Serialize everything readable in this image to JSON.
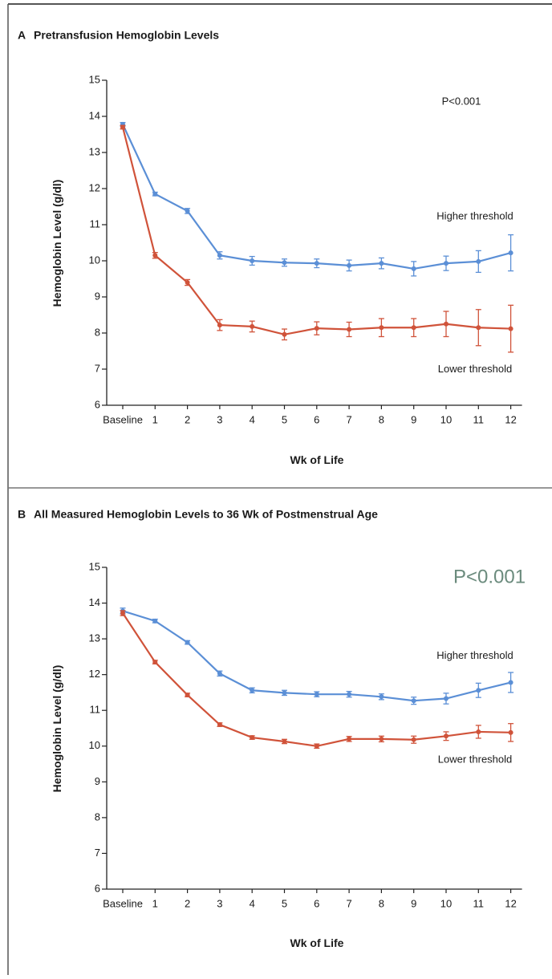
{
  "chart_data": [
    {
      "type": "line",
      "panel": "A",
      "title": "Pretransfusion Hemoglobin Levels",
      "annotation": "P<0.001",
      "ylabel": "Hemoglobin Level (g/dl)",
      "xlabel": "Wk of Life",
      "categories": [
        "Baseline",
        "1",
        "2",
        "3",
        "4",
        "5",
        "6",
        "7",
        "8",
        "9",
        "10",
        "11",
        "12"
      ],
      "ylim": [
        6,
        15
      ],
      "yticks": [
        6,
        7,
        8,
        9,
        10,
        11,
        12,
        13,
        14,
        15
      ],
      "series": [
        {
          "name": "Higher threshold",
          "color": "#5b8fd6",
          "values": [
            13.78,
            11.85,
            11.38,
            10.15,
            10.0,
            9.95,
            9.93,
            9.87,
            9.93,
            9.78,
            9.93,
            9.98,
            10.22
          ],
          "errors": [
            0.05,
            0.05,
            0.07,
            0.1,
            0.12,
            0.1,
            0.12,
            0.15,
            0.15,
            0.2,
            0.2,
            0.3,
            0.5
          ]
        },
        {
          "name": "Lower threshold",
          "color": "#d0533a",
          "values": [
            13.7,
            10.15,
            9.4,
            8.22,
            8.18,
            7.96,
            8.13,
            8.1,
            8.15,
            8.15,
            8.25,
            8.15,
            8.12
          ],
          "errors": [
            0.05,
            0.08,
            0.08,
            0.15,
            0.15,
            0.15,
            0.18,
            0.2,
            0.25,
            0.25,
            0.35,
            0.5,
            0.65
          ]
        }
      ]
    },
    {
      "type": "line",
      "panel": "B",
      "title": "All Measured Hemoglobin Levels to 36 Wk of Postmenstrual Age",
      "annotation": "P<0.001",
      "ylabel": "Hemoglobin Level (g/dl)",
      "xlabel": "Wk of Life",
      "categories": [
        "Baseline",
        "1",
        "2",
        "3",
        "4",
        "5",
        "6",
        "7",
        "8",
        "9",
        "10",
        "11",
        "12"
      ],
      "ylim": [
        6,
        15
      ],
      "yticks": [
        6,
        7,
        8,
        9,
        10,
        11,
        12,
        13,
        14,
        15
      ],
      "series": [
        {
          "name": "Higher threshold",
          "color": "#5b8fd6",
          "values": [
            13.78,
            13.5,
            12.9,
            12.03,
            11.56,
            11.49,
            11.45,
            11.45,
            11.38,
            11.27,
            11.33,
            11.56,
            11.78
          ],
          "errors": [
            0.08,
            0.05,
            0.05,
            0.07,
            0.07,
            0.07,
            0.07,
            0.08,
            0.08,
            0.1,
            0.15,
            0.2,
            0.28
          ]
        },
        {
          "name": "Lower threshold",
          "color": "#d0533a",
          "values": [
            13.72,
            12.35,
            11.43,
            10.6,
            10.24,
            10.13,
            10.0,
            10.2,
            10.2,
            10.18,
            10.28,
            10.4,
            10.38
          ],
          "errors": [
            0.07,
            0.05,
            0.05,
            0.05,
            0.05,
            0.06,
            0.06,
            0.07,
            0.08,
            0.1,
            0.12,
            0.18,
            0.25
          ]
        }
      ]
    }
  ]
}
